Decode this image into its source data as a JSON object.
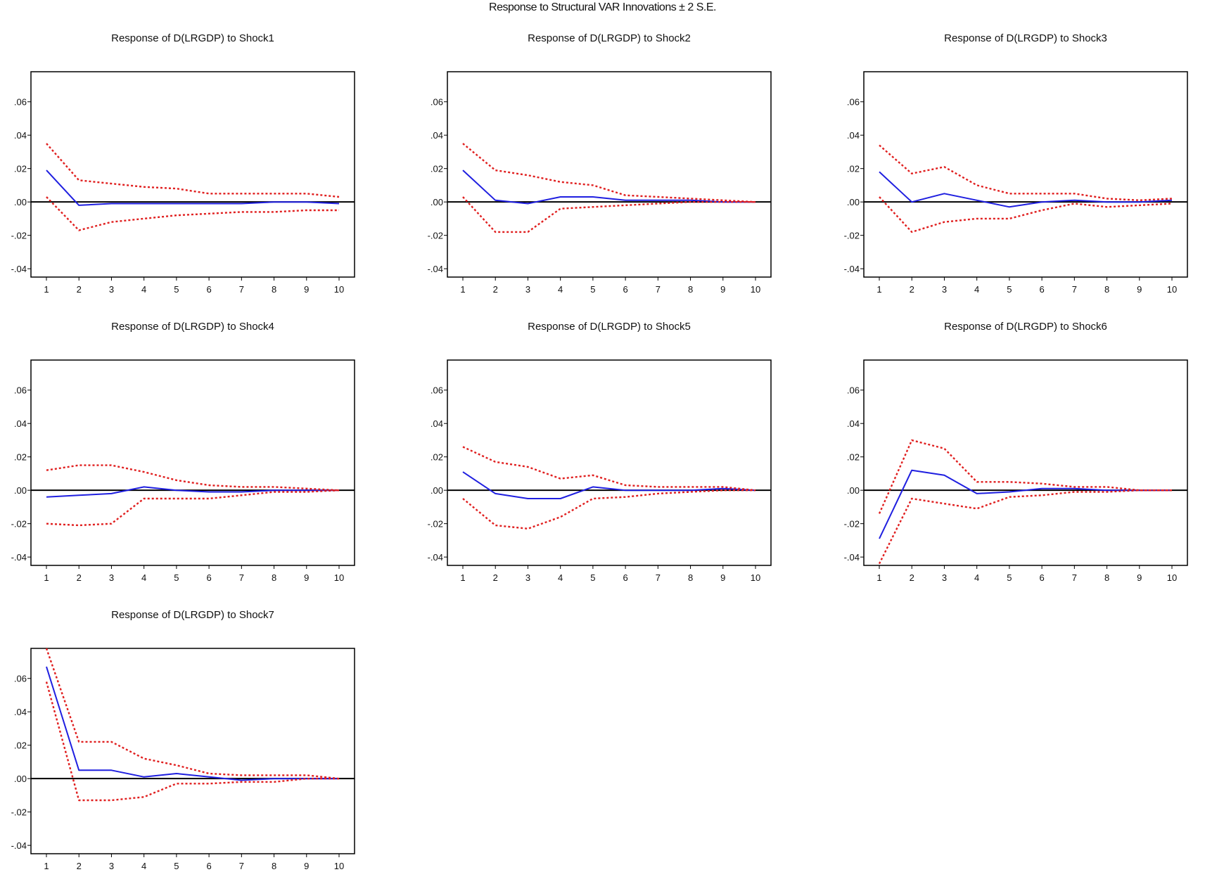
{
  "figure": {
    "title": "Response to Structural VAR Innovations ± 2 S.E."
  },
  "colors": {
    "response": "#1f1fe0",
    "bands": "#e01f1f",
    "axis": "#000000"
  },
  "chart_data": [
    {
      "type": "line",
      "title": "Response of D(LRGDP) to Shock1",
      "x": [
        1,
        2,
        3,
        4,
        5,
        6,
        7,
        8,
        9,
        10
      ],
      "ylim": [
        -0.045,
        0.078
      ],
      "yticks": [
        0.06,
        0.04,
        0.02,
        0.0,
        -0.02,
        -0.04
      ],
      "ytick_labels": [
        ".06",
        ".04",
        ".02",
        ".00",
        "-.02",
        "-.04"
      ],
      "grid": false,
      "series": [
        {
          "role": "response",
          "values": [
            0.019,
            -0.002,
            -0.001,
            -0.001,
            -0.001,
            -0.001,
            -0.001,
            0.0,
            0.0,
            -0.001
          ]
        },
        {
          "role": "upper",
          "values": [
            0.035,
            0.013,
            0.011,
            0.009,
            0.008,
            0.005,
            0.005,
            0.005,
            0.005,
            0.003
          ]
        },
        {
          "role": "lower",
          "values": [
            0.003,
            -0.017,
            -0.012,
            -0.01,
            -0.008,
            -0.007,
            -0.006,
            -0.006,
            -0.005,
            -0.005
          ]
        }
      ]
    },
    {
      "type": "line",
      "title": "Response of D(LRGDP) to Shock2",
      "x": [
        1,
        2,
        3,
        4,
        5,
        6,
        7,
        8,
        9,
        10
      ],
      "ylim": [
        -0.045,
        0.078
      ],
      "yticks": [
        0.06,
        0.04,
        0.02,
        0.0,
        -0.02,
        -0.04
      ],
      "ytick_labels": [
        ".06",
        ".04",
        ".02",
        ".00",
        "-.02",
        "-.04"
      ],
      "grid": false,
      "series": [
        {
          "role": "response",
          "values": [
            0.019,
            0.001,
            -0.001,
            0.003,
            0.003,
            0.001,
            0.001,
            0.001,
            0.0,
            0.0
          ]
        },
        {
          "role": "upper",
          "values": [
            0.035,
            0.019,
            0.016,
            0.012,
            0.01,
            0.004,
            0.003,
            0.002,
            0.001,
            0.0
          ]
        },
        {
          "role": "lower",
          "values": [
            0.003,
            -0.018,
            -0.018,
            -0.004,
            -0.003,
            -0.002,
            -0.001,
            0.0,
            0.0,
            0.0
          ]
        }
      ]
    },
    {
      "type": "line",
      "title": "Response of D(LRGDP) to Shock3",
      "x": [
        1,
        2,
        3,
        4,
        5,
        6,
        7,
        8,
        9,
        10
      ],
      "ylim": [
        -0.045,
        0.078
      ],
      "yticks": [
        0.06,
        0.04,
        0.02,
        0.0,
        -0.02,
        -0.04
      ],
      "ytick_labels": [
        ".06",
        ".04",
        ".02",
        ".00",
        "-.02",
        "-.04"
      ],
      "grid": false,
      "series": [
        {
          "role": "response",
          "values": [
            0.018,
            0.0,
            0.005,
            0.001,
            -0.003,
            0.0,
            0.001,
            0.0,
            0.0,
            0.001
          ]
        },
        {
          "role": "upper",
          "values": [
            0.034,
            0.017,
            0.021,
            0.01,
            0.005,
            0.005,
            0.005,
            0.002,
            0.001,
            0.002
          ]
        },
        {
          "role": "lower",
          "values": [
            0.003,
            -0.018,
            -0.012,
            -0.01,
            -0.01,
            -0.005,
            -0.001,
            -0.003,
            -0.002,
            -0.001
          ]
        }
      ]
    },
    {
      "type": "line",
      "title": "Response of D(LRGDP) to Shock4",
      "x": [
        1,
        2,
        3,
        4,
        5,
        6,
        7,
        8,
        9,
        10
      ],
      "ylim": [
        -0.045,
        0.078
      ],
      "yticks": [
        0.06,
        0.04,
        0.02,
        0.0,
        -0.02,
        -0.04
      ],
      "ytick_labels": [
        ".06",
        ".04",
        ".02",
        ".00",
        "-.02",
        "-.04"
      ],
      "grid": false,
      "series": [
        {
          "role": "response",
          "values": [
            -0.004,
            -0.003,
            -0.002,
            0.002,
            0.0,
            -0.001,
            -0.001,
            0.0,
            0.0,
            0.0
          ]
        },
        {
          "role": "upper",
          "values": [
            0.012,
            0.015,
            0.015,
            0.011,
            0.006,
            0.003,
            0.002,
            0.002,
            0.001,
            0.0
          ]
        },
        {
          "role": "lower",
          "values": [
            -0.02,
            -0.021,
            -0.02,
            -0.005,
            -0.005,
            -0.005,
            -0.003,
            -0.001,
            -0.001,
            0.0
          ]
        }
      ]
    },
    {
      "type": "line",
      "title": "Response of D(LRGDP) to Shock5",
      "x": [
        1,
        2,
        3,
        4,
        5,
        6,
        7,
        8,
        9,
        10
      ],
      "ylim": [
        -0.045,
        0.078
      ],
      "yticks": [
        0.06,
        0.04,
        0.02,
        0.0,
        -0.02,
        -0.04
      ],
      "ytick_labels": [
        ".06",
        ".04",
        ".02",
        ".00",
        "-.02",
        "-.04"
      ],
      "grid": false,
      "series": [
        {
          "role": "response",
          "values": [
            0.011,
            -0.002,
            -0.005,
            -0.005,
            0.002,
            0.0,
            0.0,
            0.0,
            0.001,
            0.0
          ]
        },
        {
          "role": "upper",
          "values": [
            0.026,
            0.017,
            0.014,
            0.007,
            0.009,
            0.003,
            0.002,
            0.002,
            0.002,
            0.0
          ]
        },
        {
          "role": "lower",
          "values": [
            -0.005,
            -0.021,
            -0.023,
            -0.016,
            -0.005,
            -0.004,
            -0.002,
            -0.001,
            0.0,
            0.0
          ]
        }
      ]
    },
    {
      "type": "line",
      "title": "Response of D(LRGDP) to Shock6",
      "x": [
        1,
        2,
        3,
        4,
        5,
        6,
        7,
        8,
        9,
        10
      ],
      "ylim": [
        -0.045,
        0.078
      ],
      "yticks": [
        0.06,
        0.04,
        0.02,
        0.0,
        -0.02,
        -0.04
      ],
      "ytick_labels": [
        ".06",
        ".04",
        ".02",
        ".00",
        "-.02",
        "-.04"
      ],
      "grid": false,
      "series": [
        {
          "role": "response",
          "values": [
            -0.029,
            0.012,
            0.009,
            -0.002,
            -0.001,
            0.001,
            0.001,
            0.0,
            0.0,
            0.0
          ]
        },
        {
          "role": "upper",
          "values": [
            -0.014,
            0.03,
            0.025,
            0.005,
            0.005,
            0.004,
            0.002,
            0.002,
            0.0,
            0.0
          ]
        },
        {
          "role": "lower",
          "values": [
            -0.044,
            -0.005,
            -0.008,
            -0.011,
            -0.004,
            -0.003,
            -0.001,
            -0.001,
            0.0,
            0.0
          ]
        }
      ]
    },
    {
      "type": "line",
      "title": "Response of D(LRGDP) to Shock7",
      "x": [
        1,
        2,
        3,
        4,
        5,
        6,
        7,
        8,
        9,
        10
      ],
      "ylim": [
        -0.045,
        0.078
      ],
      "yticks": [
        0.06,
        0.04,
        0.02,
        0.0,
        -0.02,
        -0.04
      ],
      "ytick_labels": [
        ".06",
        ".04",
        ".02",
        ".00",
        "-.02",
        "-.04"
      ],
      "grid": false,
      "series": [
        {
          "role": "response",
          "values": [
            0.067,
            0.005,
            0.005,
            0.001,
            0.003,
            0.001,
            -0.001,
            0.0,
            0.0,
            0.0
          ]
        },
        {
          "role": "upper",
          "values": [
            0.078,
            0.022,
            0.022,
            0.012,
            0.008,
            0.003,
            0.002,
            0.002,
            0.002,
            0.0
          ]
        },
        {
          "role": "lower",
          "values": [
            0.058,
            -0.013,
            -0.013,
            -0.011,
            -0.003,
            -0.003,
            -0.002,
            -0.002,
            0.0,
            0.0
          ]
        }
      ]
    }
  ]
}
